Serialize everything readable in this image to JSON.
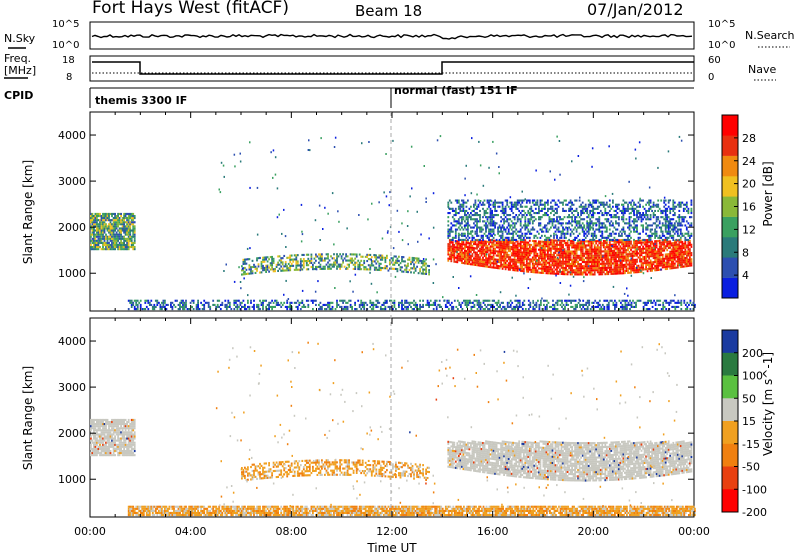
{
  "header": {
    "station": "Fort Hays West (fitACF)",
    "beam": "Beam 18",
    "date": "07/Jan/2012"
  },
  "strip": {
    "nsky_label": "N.Sky",
    "nsearch_label": "N.Search",
    "freq_label": "Freq.",
    "freq_unit": "[MHz]",
    "nave_label": "Nave",
    "cpid_label": "CPID",
    "nsky_ticks": [
      "10^5",
      "10^0"
    ],
    "nsearch_ticks": [
      "10^5",
      "10^0"
    ],
    "freq_ticks": [
      "18",
      "8"
    ],
    "nave_ticks": [
      "60",
      "0"
    ],
    "cpid_segments": [
      "themis 3300 IF",
      "normal (fast) 151 IF"
    ]
  },
  "chart_data": [
    {
      "type": "heatmap",
      "title": "",
      "quantity": "Power",
      "ylabel": "Slant Range [km]",
      "xlabel": "",
      "ylim": [
        180,
        4500
      ],
      "yticks": [
        1000,
        2000,
        3000,
        4000
      ],
      "colorbar": {
        "label": "Power [dB]",
        "ticks": [
          4,
          8,
          12,
          16,
          20,
          24,
          28
        ],
        "range": [
          0,
          32
        ],
        "colors": [
          "#0a1fe0",
          "#2c4fb0",
          "#2a7a7a",
          "#3aa060",
          "#8ab838",
          "#f0c020",
          "#f08a10",
          "#e83010",
          "#ff0000"
        ]
      },
      "regions": [
        {
          "t0": 0.0,
          "t1": 1.8,
          "r0": 1500,
          "r1": 2300,
          "level": "mid",
          "note": "green/blue echoes"
        },
        {
          "t0": 14.2,
          "t1": 23.9,
          "r0": 900,
          "r1": 1700,
          "level": "high",
          "note": "strong red band"
        },
        {
          "t0": 14.2,
          "t1": 23.9,
          "r0": 1700,
          "r1": 2600,
          "level": "low"
        },
        {
          "t0": 6.0,
          "t1": 13.5,
          "r0": 950,
          "r1": 1500,
          "level": "mid"
        },
        {
          "t0": 1.5,
          "t1": 24.0,
          "r0": 200,
          "r1": 400,
          "level": "low"
        }
      ]
    },
    {
      "type": "heatmap",
      "title": "",
      "quantity": "Velocity",
      "ylabel": "Slant Range [km]",
      "xlabel": "Time UT",
      "ylim": [
        180,
        4500
      ],
      "yticks": [
        1000,
        2000,
        3000,
        4000
      ],
      "xticks": [
        "00:00",
        "04:00",
        "08:00",
        "12:00",
        "16:00",
        "20:00",
        "00:00"
      ],
      "colorbar": {
        "label": "Velocity [m s^-1]",
        "ticks": [
          200,
          100,
          50,
          15,
          -15,
          -50,
          -100,
          -200
        ],
        "range": [
          -250,
          250
        ],
        "colors": [
          "#1a3aa0",
          "#2a7a40",
          "#5ac040",
          "#c8c8c0",
          "#f0a020",
          "#f08010",
          "#e84010",
          "#ff0000"
        ]
      },
      "regions": [
        {
          "t0": 0.0,
          "t1": 1.8,
          "r0": 1500,
          "r1": 2300,
          "level": "zero",
          "note": "ground scatter (grey)"
        },
        {
          "t0": 14.2,
          "t1": 23.9,
          "r0": 900,
          "r1": 1800,
          "level": "zero",
          "note": "ground scatter (grey)"
        },
        {
          "t0": 6.0,
          "t1": 13.5,
          "r0": 950,
          "r1": 1500,
          "level": "neg",
          "note": "orange flows"
        },
        {
          "t0": 1.5,
          "t1": 24.0,
          "r0": 200,
          "r1": 400,
          "level": "neg"
        }
      ]
    }
  ]
}
